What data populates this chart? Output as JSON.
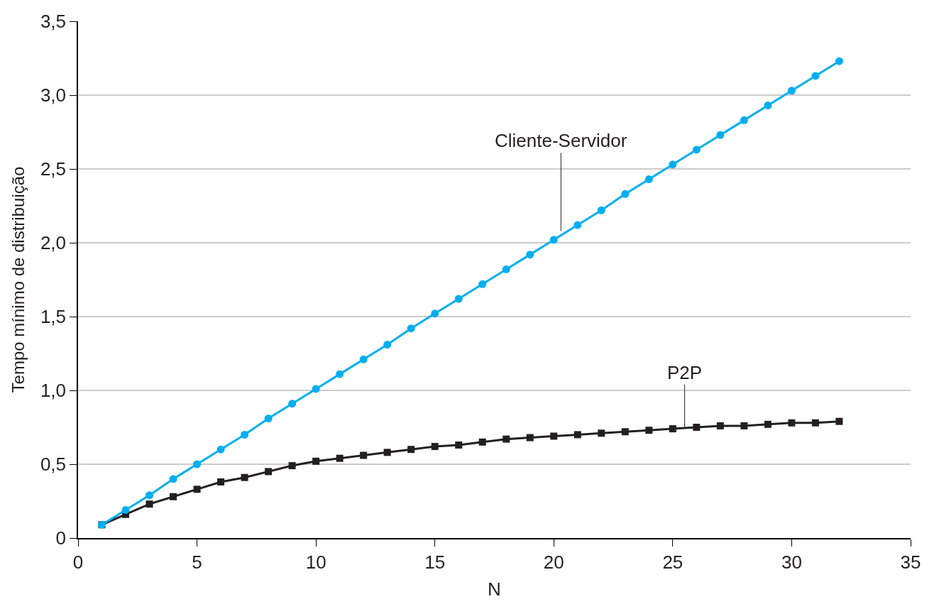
{
  "chart_data": {
    "type": "line",
    "xlabel": "N",
    "ylabel": "Tempo mínimo de distribuição",
    "x": [
      1,
      2,
      3,
      4,
      5,
      6,
      7,
      8,
      9,
      10,
      11,
      12,
      13,
      14,
      15,
      16,
      17,
      18,
      19,
      20,
      21,
      22,
      23,
      24,
      25,
      26,
      27,
      28,
      29,
      30,
      31,
      32
    ],
    "series": [
      {
        "color": "#00aeef",
        "marker": "circle",
        "values": [
          0.09,
          0.19,
          0.29,
          0.4,
          0.5,
          0.6,
          0.7,
          0.81,
          0.91,
          1.01,
          1.11,
          1.21,
          1.31,
          1.42,
          1.52,
          1.62,
          1.72,
          1.82,
          1.92,
          2.02,
          2.12,
          2.22,
          2.33,
          2.43,
          2.53,
          2.63,
          2.73,
          2.83,
          2.93,
          3.03,
          3.13,
          3.23
        ]
      },
      {
        "color": "#231f20",
        "marker": "square",
        "values": [
          0.09,
          0.16,
          0.23,
          0.28,
          0.33,
          0.38,
          0.41,
          0.45,
          0.49,
          0.52,
          0.54,
          0.56,
          0.58,
          0.6,
          0.62,
          0.63,
          0.65,
          0.67,
          0.68,
          0.69,
          0.7,
          0.71,
          0.72,
          0.73,
          0.74,
          0.75,
          0.76,
          0.76,
          0.77,
          0.78,
          0.78,
          0.79
        ]
      }
    ],
    "annotations": [
      {
        "text": "Cliente-Servidor",
        "x": 20.3,
        "y": 2.08
      },
      {
        "text": "P2P",
        "x": 25.5,
        "y": 0.75
      }
    ],
    "xlim": [
      0,
      35
    ],
    "xticks": [
      0,
      5,
      10,
      15,
      20,
      25,
      30,
      35
    ],
    "ylim": [
      0,
      3.5
    ],
    "yticks": [
      0,
      {
        "value": 0.5,
        "label": "0,5"
      },
      {
        "value": 1.0,
        "label": "1,0"
      },
      {
        "value": 1.5,
        "label": "1,5"
      },
      {
        "value": 2.0,
        "label": "2,0"
      },
      {
        "value": 2.5,
        "label": "2,5"
      },
      {
        "value": 3.0,
        "label": "3,0"
      },
      {
        "value": 3.5,
        "label": "3,5"
      }
    ],
    "grid": "y"
  }
}
